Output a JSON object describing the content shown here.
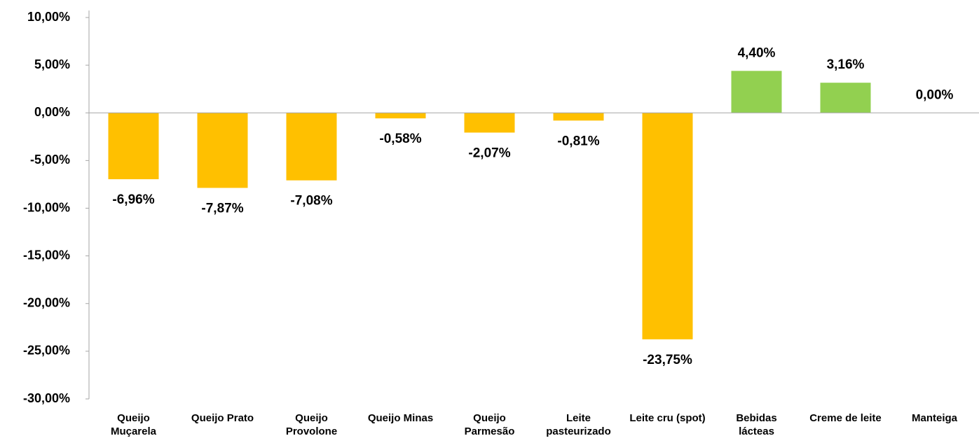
{
  "chart_data": {
    "type": "bar",
    "categories": [
      "Queijo Muçarela",
      "Queijo Prato",
      "Queijo Provolone",
      "Queijo Minas",
      "Queijo Parmesão",
      "Leite pasteurizado",
      "Leite cru (spot)",
      "Bebidas lácteas",
      "Creme de leite",
      "Manteiga"
    ],
    "values": [
      -6.96,
      -7.87,
      -7.08,
      -0.58,
      -2.07,
      -0.81,
      -23.75,
      4.4,
      3.16,
      0.0
    ],
    "value_labels": [
      "-6,96%",
      "-7,87%",
      "-7,08%",
      "-0,58%",
      "-2,07%",
      "-0,81%",
      "-23,75%",
      "4,40%",
      "3,16%",
      "0,00%"
    ],
    "colors": [
      "#FFC000",
      "#FFC000",
      "#FFC000",
      "#FFC000",
      "#FFC000",
      "#FFC000",
      "#FFC000",
      "#92D050",
      "#92D050",
      "#92D050"
    ],
    "ylim": [
      -30,
      10
    ],
    "yticks": [
      {
        "value": 10,
        "label": "10,00%"
      },
      {
        "value": 5,
        "label": "5,00%"
      },
      {
        "value": 0,
        "label": "0,00%"
      },
      {
        "value": -5,
        "label": "-5,00%"
      },
      {
        "value": -10,
        "label": "-10,00%"
      },
      {
        "value": -15,
        "label": "-15,00%"
      },
      {
        "value": -20,
        "label": "-20,00%"
      },
      {
        "value": -25,
        "label": "-25,00%"
      },
      {
        "value": -30,
        "label": "-30,00%"
      }
    ],
    "grid": false
  }
}
